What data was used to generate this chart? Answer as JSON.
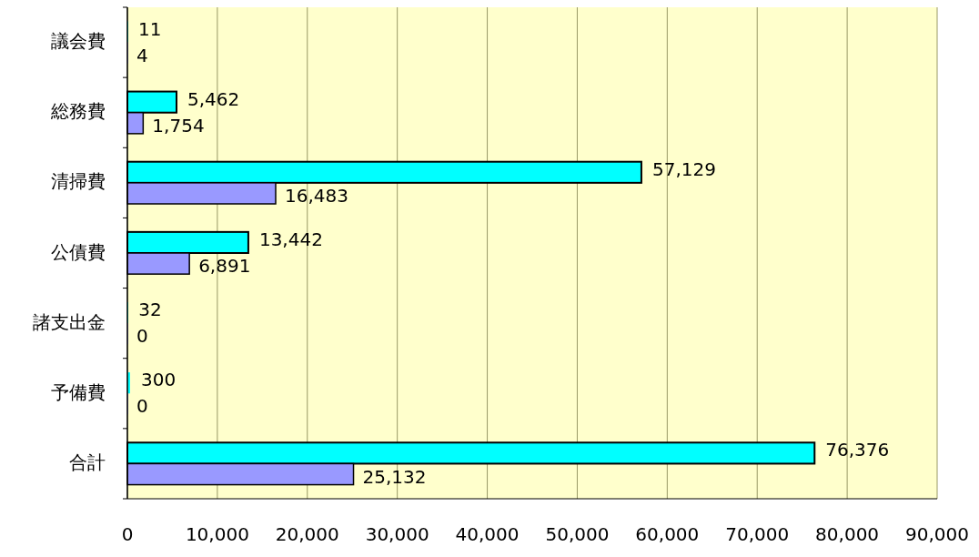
{
  "chart_data": {
    "type": "bar",
    "orientation": "horizontal",
    "categories": [
      "議会費",
      "総務費",
      "清掃費",
      "公債費",
      "諸支出金",
      "予備費",
      "合計"
    ],
    "series": [
      {
        "color": "#00ffff",
        "values": [
          11,
          5462,
          57129,
          13442,
          32,
          300,
          76376
        ],
        "value_labels": [
          "11",
          "5,462",
          "57,129",
          "13,442",
          "32",
          "300",
          "76,376"
        ]
      },
      {
        "color": "#9999ff",
        "values": [
          4,
          1754,
          16483,
          6891,
          0,
          0,
          25132
        ],
        "value_labels": [
          "4",
          "1,754",
          "16,483",
          "6,891",
          "0",
          "0",
          "25,132"
        ]
      }
    ],
    "xlim": [
      0,
      90000
    ],
    "xticks": [
      {
        "value": 0,
        "label": "0"
      },
      {
        "value": 10000,
        "label": "10,000"
      },
      {
        "value": 20000,
        "label": "20,000"
      },
      {
        "value": 30000,
        "label": "30,000"
      },
      {
        "value": 40000,
        "label": "40,000"
      },
      {
        "value": 50000,
        "label": "50,000"
      },
      {
        "value": 60000,
        "label": "60,000"
      },
      {
        "value": 70000,
        "label": "70,000"
      },
      {
        "value": 80000,
        "label": "80,000"
      },
      {
        "value": 90000,
        "label": "90,000"
      }
    ],
    "grid": "x"
  }
}
